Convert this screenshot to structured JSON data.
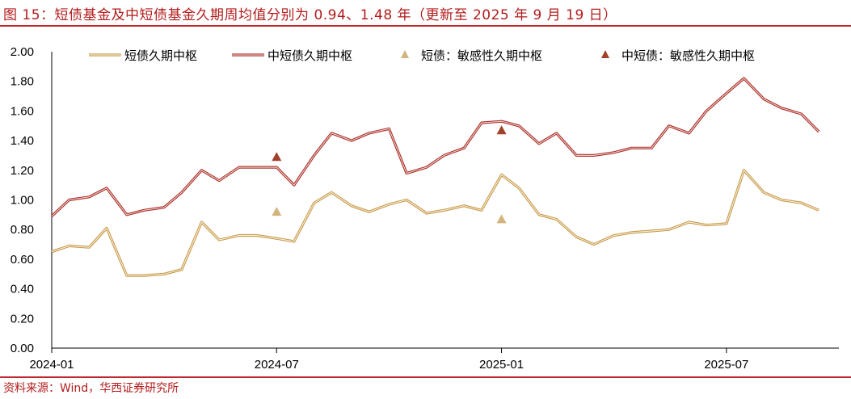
{
  "figure": {
    "title": "图 15：短债基金及中短债基金久期周均值分别为 0.94、1.48 年（更新至 2025 年 9 月 19 日）",
    "source": "资料来源：Wind，华西证券研究所"
  },
  "colors": {
    "accent": "#c0282d",
    "short_line": "#d9b87a",
    "short_outline": "#c79a4a",
    "mid_line": "#a9302b",
    "short_marker": "#d2b47c",
    "mid_marker": "#a0422a"
  },
  "chart_data": {
    "type": "line",
    "x_unit": "month",
    "xlim": [
      "2024-01",
      "2025-10"
    ],
    "x_ticks": [
      "2024-01",
      "2024-07",
      "2025-01",
      "2025-07"
    ],
    "ylim": [
      0,
      2.0
    ],
    "y_ticks": [
      "0.00",
      "0.20",
      "0.40",
      "0.60",
      "0.80",
      "1.00",
      "1.20",
      "1.40",
      "1.60",
      "1.80",
      "2.00"
    ],
    "legend_position": "top",
    "series": [
      {
        "name": "短债久期中枢",
        "style": "line",
        "x": [
          "2024-01",
          "2024-01-15",
          "2024-02",
          "2024-02-15",
          "2024-03",
          "2024-03-15",
          "2024-04",
          "2024-04-15",
          "2024-05",
          "2024-05-15",
          "2024-06",
          "2024-06-15",
          "2024-07",
          "2024-07-15",
          "2024-08",
          "2024-08-15",
          "2024-09",
          "2024-09-15",
          "2024-10",
          "2024-10-15",
          "2024-11",
          "2024-11-15",
          "2024-12",
          "2024-12-15",
          "2025-01",
          "2025-01-15",
          "2025-02",
          "2025-02-15",
          "2025-03",
          "2025-03-15",
          "2025-04",
          "2025-04-15",
          "2025-05",
          "2025-05-15",
          "2025-06",
          "2025-06-15",
          "2025-07",
          "2025-07-15",
          "2025-08",
          "2025-08-15",
          "2025-09",
          "2025-09-15"
        ],
        "values": [
          0.65,
          0.69,
          0.68,
          0.81,
          0.49,
          0.49,
          0.5,
          0.53,
          0.85,
          0.73,
          0.76,
          0.76,
          0.74,
          0.72,
          0.98,
          1.05,
          0.96,
          0.92,
          0.97,
          1.0,
          0.91,
          0.93,
          0.96,
          0.93,
          1.17,
          1.08,
          0.9,
          0.87,
          0.75,
          0.7,
          0.76,
          0.78,
          0.79,
          0.8,
          0.85,
          0.83,
          0.84,
          1.2,
          1.05,
          1.0,
          0.98,
          0.93
        ]
      },
      {
        "name": "中短债久期中枢",
        "style": "line",
        "x": [
          "2024-01",
          "2024-01-15",
          "2024-02",
          "2024-02-15",
          "2024-03",
          "2024-03-15",
          "2024-04",
          "2024-04-15",
          "2024-05",
          "2024-05-15",
          "2024-06",
          "2024-06-15",
          "2024-07",
          "2024-07-15",
          "2024-08",
          "2024-08-15",
          "2024-09",
          "2024-09-15",
          "2024-10",
          "2024-10-15",
          "2024-11",
          "2024-11-15",
          "2024-12",
          "2024-12-15",
          "2025-01",
          "2025-01-15",
          "2025-02",
          "2025-02-15",
          "2025-03",
          "2025-03-15",
          "2025-04",
          "2025-04-15",
          "2025-05",
          "2025-05-15",
          "2025-06",
          "2025-06-15",
          "2025-07",
          "2025-07-15",
          "2025-08",
          "2025-08-15",
          "2025-09",
          "2025-09-15"
        ],
        "values": [
          0.89,
          1.0,
          1.02,
          1.08,
          0.9,
          0.93,
          0.95,
          1.05,
          1.2,
          1.13,
          1.22,
          1.22,
          1.22,
          1.1,
          1.3,
          1.45,
          1.4,
          1.45,
          1.48,
          1.18,
          1.22,
          1.3,
          1.35,
          1.52,
          1.53,
          1.5,
          1.38,
          1.45,
          1.3,
          1.3,
          1.32,
          1.35,
          1.35,
          1.5,
          1.45,
          1.6,
          1.72,
          1.82,
          1.68,
          1.62,
          1.58,
          1.46
        ]
      },
      {
        "name": "短债：敏感性久期中枢",
        "style": "marker",
        "x": [
          "2024-07",
          "2025-01"
        ],
        "values": [
          0.92,
          0.87
        ]
      },
      {
        "name": "中短债：敏感性久期中枢",
        "style": "marker",
        "x": [
          "2024-07",
          "2025-01"
        ],
        "values": [
          1.29,
          1.47
        ]
      }
    ]
  }
}
